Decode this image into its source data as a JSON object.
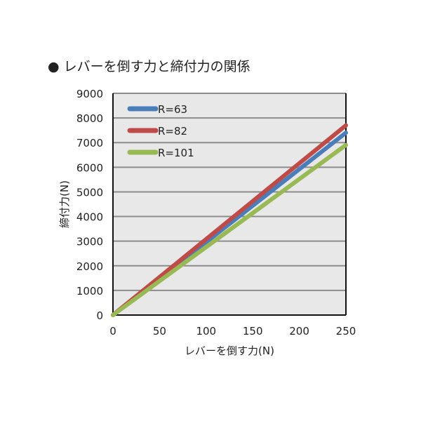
{
  "chart_data": {
    "type": "line",
    "title": "● レバーを倒す力と締付力の関係",
    "xlabel": "レバーを倒す力(N)",
    "ylabel": "締付力(N)",
    "xlim": [
      0,
      250
    ],
    "ylim": [
      0,
      9000
    ],
    "xticks": [
      "0",
      "50",
      "100",
      "150",
      "200",
      "250"
    ],
    "yticks": [
      "0",
      "1000",
      "2000",
      "3000",
      "4000",
      "5000",
      "6000",
      "7000",
      "8000",
      "9000"
    ],
    "grid": true,
    "legend": "top-left",
    "series": [
      {
        "name": "R=63",
        "color": "#4a7ebb",
        "x": [
          0,
          250
        ],
        "y": [
          0,
          7400
        ]
      },
      {
        "name": "R=82",
        "color": "#be4b48",
        "x": [
          0,
          250
        ],
        "y": [
          0,
          7700
        ]
      },
      {
        "name": "R=101",
        "color": "#98b954",
        "x": [
          0,
          250
        ],
        "y": [
          0,
          6900
        ]
      }
    ]
  }
}
